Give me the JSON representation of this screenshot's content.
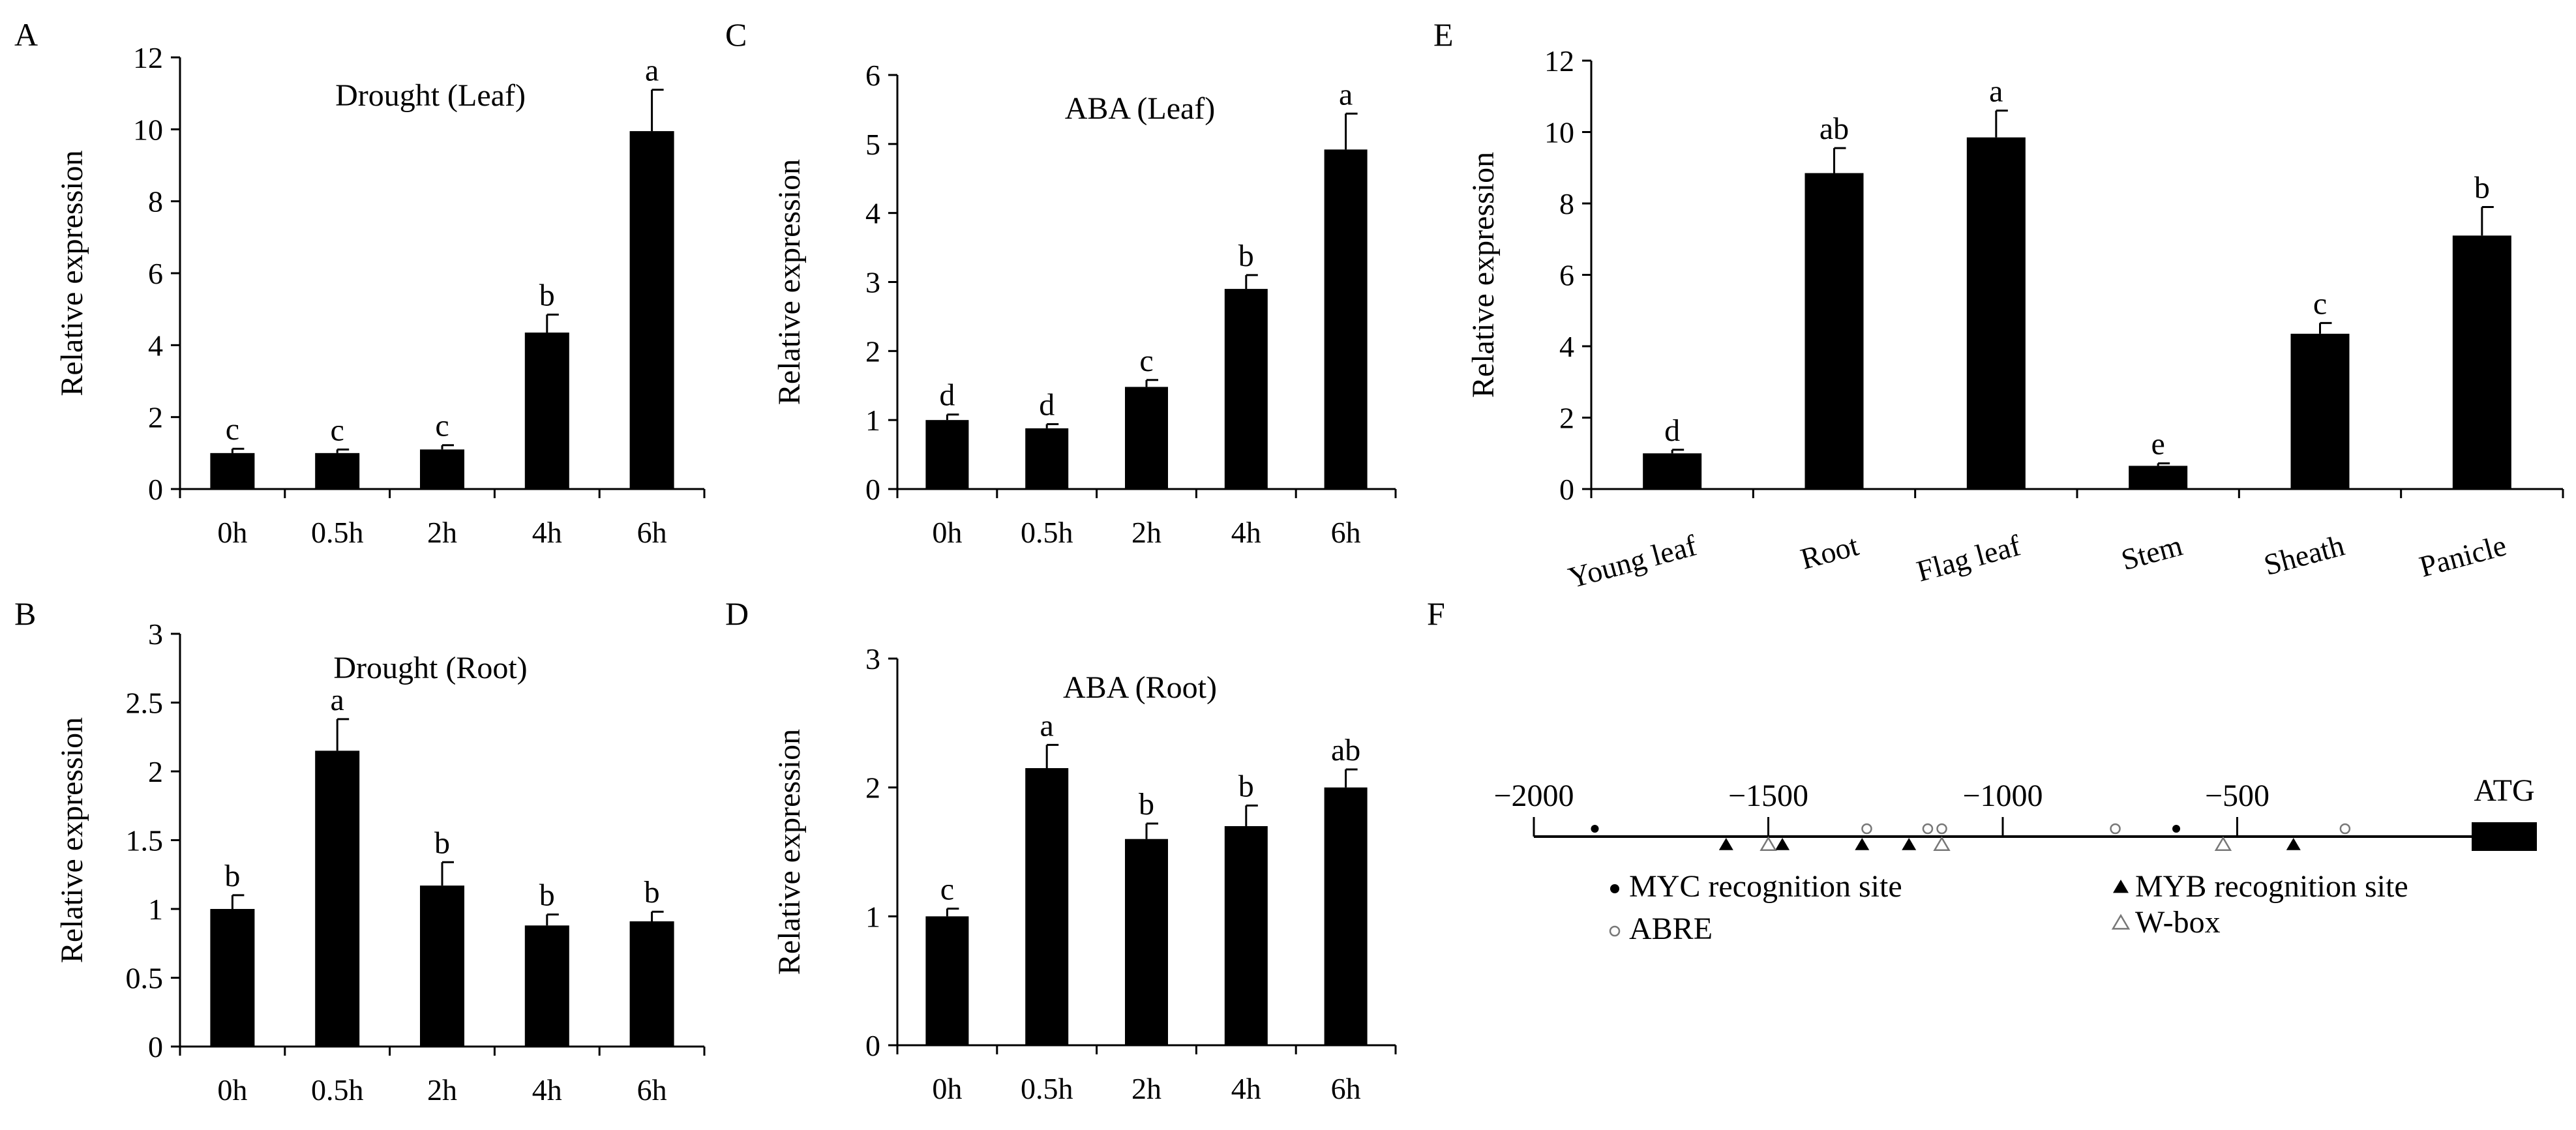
{
  "chart_data": [
    {
      "panel": "A",
      "type": "bar",
      "title": "Drought (Leaf)",
      "xlabel": "",
      "ylabel": "Relative expression",
      "categories": [
        "0h",
        "0.5h",
        "2h",
        "4h",
        "6h"
      ],
      "values": [
        1.0,
        1.0,
        1.1,
        4.35,
        9.95
      ],
      "errors": [
        0.12,
        0.1,
        0.12,
        0.5,
        1.15
      ],
      "letters": [
        "c",
        "c",
        "c",
        "b",
        "a"
      ],
      "ylim": [
        0,
        12
      ],
      "yticks": [
        "0",
        "2",
        "4",
        "6",
        "8",
        "10",
        "12"
      ]
    },
    {
      "panel": "B",
      "type": "bar",
      "title": "Drought (Root)",
      "xlabel": "",
      "ylabel": "Relative expression",
      "categories": [
        "0h",
        "0.5h",
        "2h",
        "4h",
        "6h"
      ],
      "values": [
        1.0,
        2.15,
        1.17,
        0.88,
        0.91
      ],
      "errors": [
        0.1,
        0.23,
        0.17,
        0.08,
        0.07
      ],
      "letters": [
        "b",
        "a",
        "b",
        "b",
        "b"
      ],
      "ylim": [
        0,
        3
      ],
      "yticks": [
        "0",
        "0.5",
        "1",
        "1.5",
        "2",
        "2.5",
        "3"
      ]
    },
    {
      "panel": "C",
      "type": "bar",
      "title": "ABA (Leaf)",
      "xlabel": "",
      "ylabel": "Relative expression",
      "categories": [
        "0h",
        "0.5h",
        "2h",
        "4h",
        "6h"
      ],
      "values": [
        1.0,
        0.88,
        1.48,
        2.9,
        4.92
      ],
      "errors": [
        0.08,
        0.06,
        0.1,
        0.2,
        0.52
      ],
      "letters": [
        "d",
        "d",
        "c",
        "b",
        "a"
      ],
      "ylim": [
        0,
        6
      ],
      "yticks": [
        "0",
        "1",
        "2",
        "3",
        "4",
        "5",
        "6"
      ]
    },
    {
      "panel": "D",
      "type": "bar",
      "title": "ABA (Root)",
      "xlabel": "",
      "ylabel": "Relative expression",
      "categories": [
        "0h",
        "0.5h",
        "2h",
        "4h",
        "6h"
      ],
      "values": [
        1.0,
        2.15,
        1.6,
        1.7,
        2.0
      ],
      "errors": [
        0.06,
        0.18,
        0.12,
        0.16,
        0.14
      ],
      "letters": [
        "c",
        "a",
        "b",
        "b",
        "ab"
      ],
      "ylim": [
        0,
        3
      ],
      "yticks": [
        "0",
        "1",
        "2",
        "3"
      ]
    },
    {
      "panel": "E",
      "type": "bar",
      "title": "",
      "xlabel": "",
      "ylabel": "Relative expression",
      "categories": [
        "Young leaf",
        "Root",
        "Flag leaf",
        "Stem",
        "Sheath",
        "Panicle"
      ],
      "values": [
        1.0,
        8.85,
        9.85,
        0.65,
        4.35,
        7.1
      ],
      "errors": [
        0.1,
        0.7,
        0.75,
        0.07,
        0.3,
        0.8
      ],
      "letters": [
        "d",
        "ab",
        "a",
        "e",
        "c",
        "b"
      ],
      "ylim": [
        0,
        12
      ],
      "yticks": [
        "0",
        "2",
        "4",
        "6",
        "8",
        "10",
        "12"
      ]
    }
  ],
  "promoter": {
    "panel": "F",
    "range": [
      -2000,
      0
    ],
    "ticks": [
      -2000,
      -1500,
      -1000,
      -500
    ],
    "tick_labels": [
      "−2000",
      "−1500",
      "−1000",
      "−500"
    ],
    "end_label": "ATG",
    "elements": {
      "MYC": [
        -1870,
        -630
      ],
      "ABRE": [
        -1290,
        -1160,
        -1130,
        -760,
        -270
      ],
      "MYB": [
        -1590,
        -1470,
        -1300,
        -1200,
        -380
      ],
      "WBOX": [
        -1500,
        -1130,
        -530
      ]
    },
    "legend": [
      {
        "key": "MYC",
        "symbol": "filled-circle",
        "label": "MYC recognition site"
      },
      {
        "key": "MYB",
        "symbol": "filled-triangle",
        "label": "MYB recognition site"
      },
      {
        "key": "ABRE",
        "symbol": "open-circle",
        "label": "ABRE"
      },
      {
        "key": "WBOX",
        "symbol": "open-triangle",
        "label": "W-box"
      }
    ]
  },
  "colors": {
    "bar": "#000000",
    "axis": "#000000",
    "open_marker": "#777777"
  }
}
